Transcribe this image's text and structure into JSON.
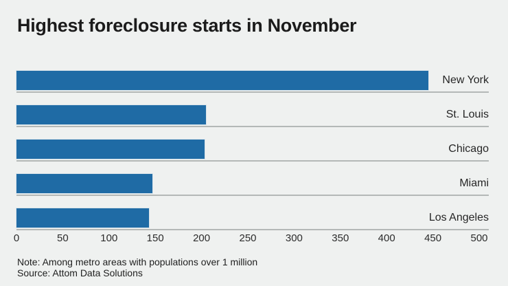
{
  "title": "Highest foreclosure starts in November",
  "note": "Note: Among metro areas with populations over 1 million",
  "source": "Source: Attom Data Solutions",
  "colors": {
    "background": "#eff1f0",
    "bar": "#1f6ba5",
    "grid_line": "#b4b8b7",
    "title_text": "#1b1b1b",
    "label_text": "#262626"
  },
  "chart_data": {
    "type": "bar",
    "orientation": "horizontal",
    "title": "Highest foreclosure starts in November",
    "categories": [
      "New York",
      "St. Louis",
      "Chicago",
      "Miami",
      "Los Angeles"
    ],
    "values": [
      445,
      205,
      203,
      147,
      143
    ],
    "xlabel": "",
    "ylabel": "",
    "xlim": [
      0,
      500
    ],
    "xticks": [
      0,
      50,
      100,
      150,
      200,
      250,
      300,
      350,
      400,
      450,
      500
    ],
    "grid": false,
    "legend_position": "none",
    "note": "Note: Among metro areas with populations over 1 million",
    "source": "Source: Attom Data Solutions"
  }
}
